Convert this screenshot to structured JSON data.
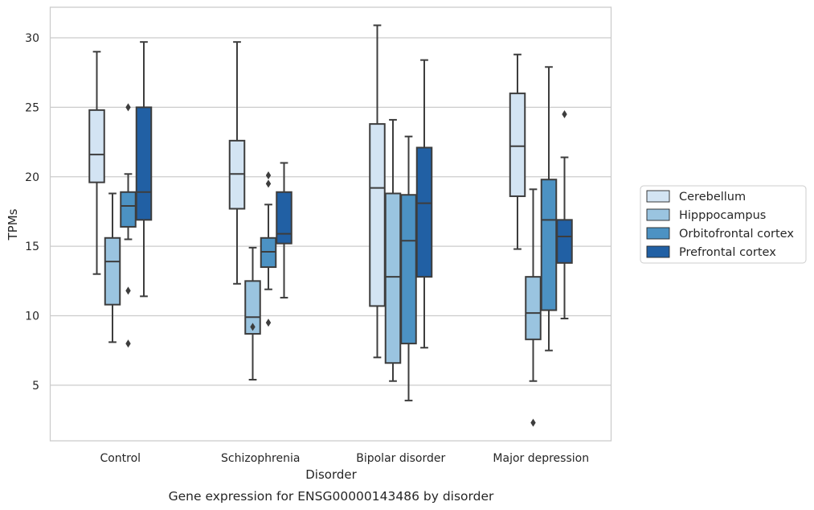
{
  "chart_data": {
    "type": "boxplot",
    "caption": "Gene expression for ENSG00000143486 by disorder",
    "xlabel": "Disorder",
    "ylabel": "TPMs",
    "ylim": [
      1,
      32.2
    ],
    "yticks": [
      5,
      10,
      15,
      20,
      25,
      30
    ],
    "grid": "horizontal",
    "legend_position": "right",
    "categories": [
      "Control",
      "Schizophrenia",
      "Bipolar disorder",
      "Major depression"
    ],
    "series": [
      {
        "name": "Cerebellum",
        "color": "#d3e4f3",
        "boxes": [
          {
            "whisker_low": 13.0,
            "q1": 19.6,
            "median": 21.6,
            "q3": 24.8,
            "whisker_high": 29.0,
            "outliers": []
          },
          {
            "whisker_low": 12.3,
            "q1": 17.7,
            "median": 20.2,
            "q3": 22.6,
            "whisker_high": 29.7,
            "outliers": []
          },
          {
            "whisker_low": 7.0,
            "q1": 10.7,
            "median": 19.2,
            "q3": 23.8,
            "whisker_high": 30.9,
            "outliers": []
          },
          {
            "whisker_low": 14.8,
            "q1": 18.6,
            "median": 22.2,
            "q3": 26.0,
            "whisker_high": 28.8,
            "outliers": []
          }
        ]
      },
      {
        "name": "Hipppocampus",
        "color": "#9ac4e0",
        "boxes": [
          {
            "whisker_low": 8.1,
            "q1": 10.8,
            "median": 13.9,
            "q3": 15.6,
            "whisker_high": 18.8,
            "outliers": []
          },
          {
            "whisker_low": 5.4,
            "q1": 8.7,
            "median": 9.9,
            "q3": 12.5,
            "whisker_high": 14.9,
            "outliers": [
              9.2
            ]
          },
          {
            "whisker_low": 5.3,
            "q1": 6.6,
            "median": 12.8,
            "q3": 18.8,
            "whisker_high": 24.1,
            "outliers": []
          },
          {
            "whisker_low": 5.3,
            "q1": 8.3,
            "median": 10.2,
            "q3": 12.8,
            "whisker_high": 19.1,
            "outliers": [
              2.3
            ]
          }
        ]
      },
      {
        "name": "Orbitofrontal cortex",
        "color": "#4c92c3",
        "boxes": [
          {
            "whisker_low": 15.5,
            "q1": 16.4,
            "median": 17.9,
            "q3": 18.9,
            "whisker_high": 20.2,
            "outliers": [
              25.0,
              11.8,
              8.0
            ]
          },
          {
            "whisker_low": 11.9,
            "q1": 13.5,
            "median": 14.6,
            "q3": 15.6,
            "whisker_high": 18.0,
            "outliers": [
              20.1,
              19.5,
              9.5
            ]
          },
          {
            "whisker_low": 3.9,
            "q1": 8.0,
            "median": 15.4,
            "q3": 18.7,
            "whisker_high": 22.9,
            "outliers": []
          },
          {
            "whisker_low": 7.5,
            "q1": 10.4,
            "median": 16.9,
            "q3": 19.8,
            "whisker_high": 27.9,
            "outliers": []
          }
        ]
      },
      {
        "name": "Prefrontal cortex",
        "color": "#2160a4",
        "boxes": [
          {
            "whisker_low": 11.4,
            "q1": 16.9,
            "median": 18.9,
            "q3": 25.0,
            "whisker_high": 29.7,
            "outliers": []
          },
          {
            "whisker_low": 11.3,
            "q1": 15.2,
            "median": 15.9,
            "q3": 18.9,
            "whisker_high": 21.0,
            "outliers": []
          },
          {
            "whisker_low": 7.7,
            "q1": 12.8,
            "median": 18.1,
            "q3": 22.1,
            "whisker_high": 28.4,
            "outliers": []
          },
          {
            "whisker_low": 9.8,
            "q1": 13.8,
            "median": 15.7,
            "q3": 16.9,
            "whisker_high": 21.4,
            "outliers": [
              24.5
            ]
          }
        ]
      }
    ]
  }
}
